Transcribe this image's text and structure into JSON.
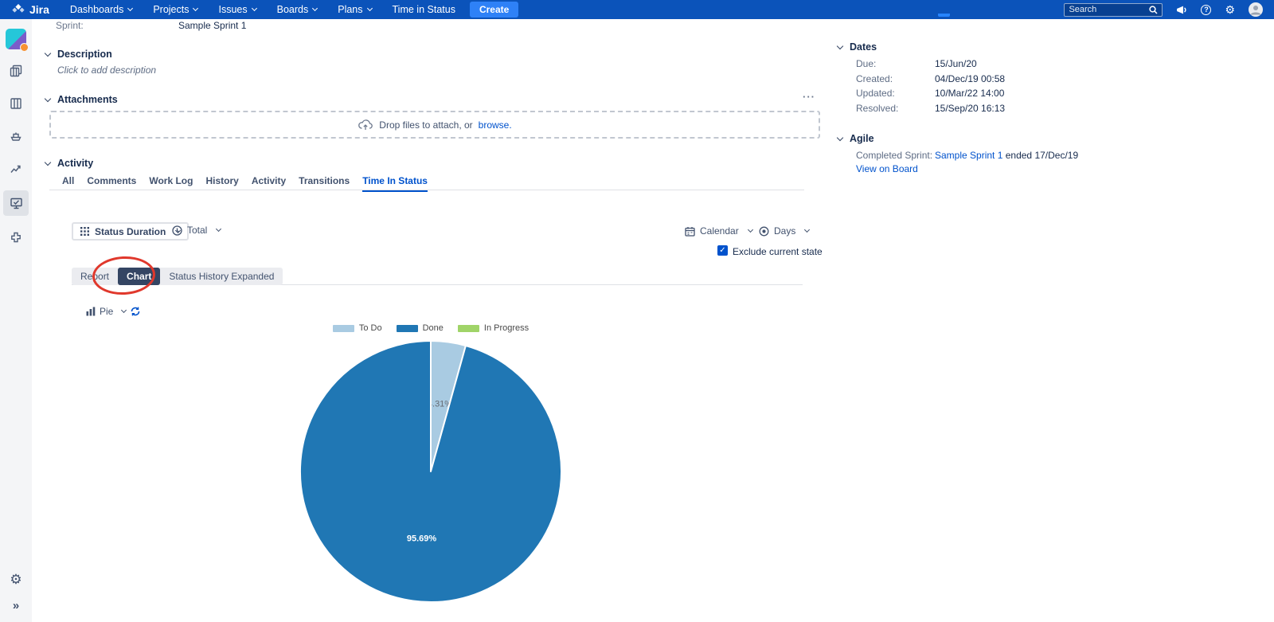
{
  "navbar": {
    "brand": "Jira",
    "items": [
      {
        "label": "Dashboards",
        "chevron": true
      },
      {
        "label": "Projects",
        "chevron": true
      },
      {
        "label": "Issues",
        "chevron": true
      },
      {
        "label": "Boards",
        "chevron": true
      },
      {
        "label": "Plans",
        "chevron": true
      },
      {
        "label": "Time in Status",
        "chevron": false
      }
    ],
    "create_label": "Create",
    "search_placeholder": "Search"
  },
  "icons": {
    "gear": "⚙",
    "help": "?",
    "check": "✓",
    "ellipsis": "···",
    "expand": "»"
  },
  "issue": {
    "sprint_label": "Sprint:",
    "sprint_value": "Sample Sprint 1",
    "description_title": "Description",
    "description_placeholder": "Click to add description",
    "attachments_title": "Attachments",
    "drop_prefix": "Drop files to attach, or",
    "browse_label": "browse.",
    "activity_title": "Activity"
  },
  "activity_tabs": [
    {
      "label": "All",
      "active": false
    },
    {
      "label": "Comments",
      "active": false
    },
    {
      "label": "Work Log",
      "active": false
    },
    {
      "label": "History",
      "active": false
    },
    {
      "label": "Activity",
      "active": false
    },
    {
      "label": "Transitions",
      "active": false
    },
    {
      "label": "Time In Status",
      "active": true
    }
  ],
  "time_in_status": {
    "metric_label": "Status Duration",
    "aggregate_label": "Total",
    "calendar_label": "Calendar",
    "unit_label": "Days",
    "exclude_label": "Exclude current state",
    "view_tabs": [
      {
        "label": "Report",
        "active": false
      },
      {
        "label": "Chart",
        "active": true
      },
      {
        "label": "Status History Expanded",
        "active": false
      }
    ],
    "chart_type_label": "Pie"
  },
  "chart_data": {
    "type": "pie",
    "title": "",
    "legend_position": "top",
    "unit": "percent of time in status",
    "slices": [
      {
        "name": "To Do",
        "value_pct": 4.31,
        "label": "4.31%",
        "color": "#A9CBE2",
        "label_color": "#666B73"
      },
      {
        "name": "Done",
        "value_pct": 95.69,
        "label": "95.69%",
        "color": "#2077B4",
        "label_color": "#FFFFFF"
      },
      {
        "name": "In Progress",
        "value_pct": 0,
        "label": "",
        "color": "#A0D468",
        "label_color": "#FFFFFF"
      }
    ]
  },
  "details": {
    "dates_title": "Dates",
    "rows": [
      {
        "label": "Due:",
        "value": "15/Jun/20"
      },
      {
        "label": "Created:",
        "value": "04/Dec/19 00:58"
      },
      {
        "label": "Updated:",
        "value": "10/Mar/22 14:00"
      },
      {
        "label": "Resolved:",
        "value": "15/Sep/20 16:13"
      }
    ],
    "agile_title": "Agile",
    "completed_sprint_label": "Completed Sprint:",
    "completed_sprint_link": "Sample Sprint 1",
    "completed_sprint_suffix": "ended 17/Dec/19",
    "view_on_board": "View on Board"
  },
  "colors": {
    "navbar_bg": "#0B53BA",
    "create_btn": "#2E81F7",
    "accent_link": "#0052CC",
    "selected_tab_bg": "#344563",
    "annotation_red": "#E0382C"
  }
}
